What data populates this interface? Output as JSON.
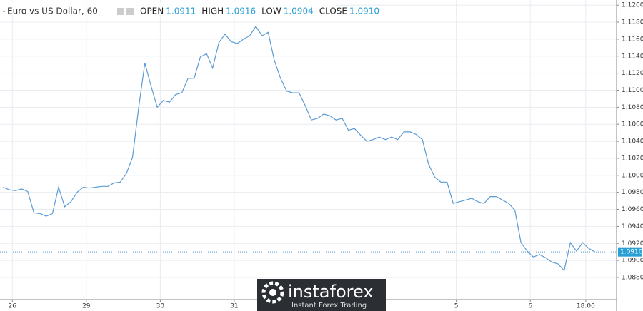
{
  "chart_data": {
    "type": "line",
    "title": "Euro vs US Dollar, 60",
    "ohlc": [
      {
        "name": "OPEN",
        "value": "1.0911"
      },
      {
        "name": "HIGH",
        "value": "1.0916"
      },
      {
        "name": "LOW",
        "value": "1.0904"
      },
      {
        "name": "CLOSE",
        "value": "1.0910"
      }
    ],
    "color": "#5b9bd5",
    "x": [
      0,
      2,
      4,
      6,
      8,
      10,
      12,
      14,
      16,
      18,
      20,
      22,
      24,
      26,
      28,
      30,
      32,
      34,
      36,
      38,
      40,
      42,
      44,
      46,
      48,
      50,
      52,
      54,
      56,
      58,
      60,
      62,
      64,
      66,
      68,
      70,
      72,
      74,
      76,
      78,
      80,
      82,
      84,
      86,
      88,
      90,
      92,
      94,
      96,
      98,
      100,
      102,
      104,
      106,
      108,
      110,
      112,
      114,
      116,
      118,
      120,
      122,
      124,
      126,
      128,
      130,
      132,
      134,
      136,
      138,
      140,
      142,
      144,
      146,
      148,
      150,
      152,
      154,
      156,
      158,
      160,
      162,
      164,
      166,
      168,
      170,
      172,
      174,
      176,
      178,
      180,
      182,
      184,
      186,
      188,
      190,
      192
    ],
    "values": [
      1.0986,
      1.0983,
      1.0982,
      1.0984,
      1.0981,
      1.0956,
      1.0955,
      1.0952,
      1.0955,
      1.0986,
      1.0963,
      1.0969,
      1.098,
      1.0986,
      1.0985,
      1.0986,
      1.0987,
      1.0987,
      1.0991,
      1.0992,
      1.1002,
      1.1021,
      1.108,
      1.1132,
      1.1105,
      1.108,
      1.1088,
      1.1086,
      1.1095,
      1.1097,
      1.1114,
      1.1114,
      1.1139,
      1.1143,
      1.1126,
      1.1156,
      1.1166,
      1.1157,
      1.1155,
      1.116,
      1.1164,
      1.1175,
      1.1164,
      1.1168,
      1.1135,
      1.1114,
      1.1099,
      1.1097,
      1.1097,
      1.1082,
      1.1065,
      1.1067,
      1.1072,
      1.107,
      1.1065,
      1.1067,
      1.1053,
      1.1055,
      1.1047,
      1.104,
      1.1042,
      1.1045,
      1.1042,
      1.1045,
      1.1042,
      1.1051,
      1.1051,
      1.1048,
      1.1042,
      1.1013,
      1.0998,
      1.0992,
      1.0992,
      1.0967,
      1.0969,
      1.0971,
      1.0973,
      1.0969,
      1.0967,
      1.0975,
      1.0975,
      1.0971,
      1.0967,
      1.0959,
      1.0921,
      1.0911,
      1.0904,
      1.0907,
      1.0903,
      1.0898,
      1.0896,
      1.0888,
      1.0921,
      1.0911,
      1.0921,
      1.0914,
      1.091
    ],
    "xlim": [
      -1,
      199
    ],
    "xticks": [
      {
        "value": 3,
        "label": "26"
      },
      {
        "value": 27,
        "label": "29"
      },
      {
        "value": 51,
        "label": "30"
      },
      {
        "value": 75,
        "label": "31"
      },
      {
        "value": 147,
        "label": "5"
      },
      {
        "value": 171,
        "label": "6"
      },
      {
        "value": 189,
        "label": "18:00"
      }
    ],
    "ylim": [
      1.0854,
      1.1206
    ],
    "yticks": [
      {
        "value": 1.088,
        "label": "1.0880"
      },
      {
        "value": 1.09,
        "label": "1.0900"
      },
      {
        "value": 1.092,
        "label": "1.0920"
      },
      {
        "value": 1.094,
        "label": "1.0940"
      },
      {
        "value": 1.096,
        "label": "1.0960"
      },
      {
        "value": 1.098,
        "label": "1.0980"
      },
      {
        "value": 1.1,
        "label": "1.1000"
      },
      {
        "value": 1.102,
        "label": "1.1020"
      },
      {
        "value": 1.104,
        "label": "1.1040"
      },
      {
        "value": 1.106,
        "label": "1.1060"
      },
      {
        "value": 1.108,
        "label": "1.1080"
      },
      {
        "value": 1.11,
        "label": "1.1100"
      },
      {
        "value": 1.112,
        "label": "1.1120"
      },
      {
        "value": 1.114,
        "label": "1.1140"
      },
      {
        "value": 1.116,
        "label": "1.1160"
      },
      {
        "value": 1.118,
        "label": "1.1180"
      },
      {
        "value": 1.12,
        "label": "1.1200"
      }
    ],
    "grid": true,
    "last_price": {
      "value": 1.091,
      "label": "1.0910"
    },
    "watermark": {
      "brand": "instaforex",
      "tagline": "Instant Forex Trading"
    }
  }
}
